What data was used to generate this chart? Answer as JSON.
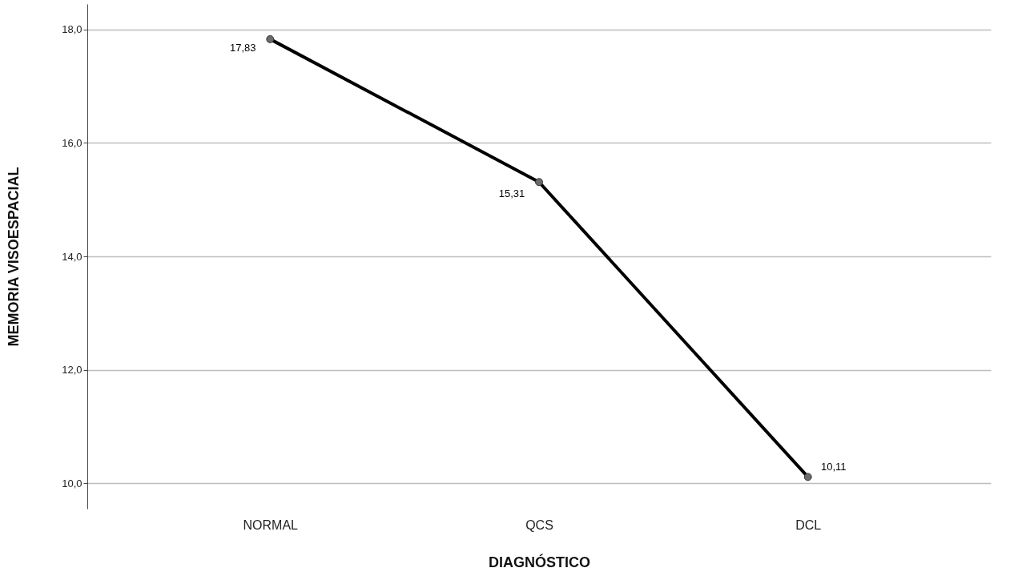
{
  "chart_data": {
    "type": "line",
    "xlabel": "DIAGNÓSTICO",
    "ylabel": "MEMORIA VISOESPACIAL",
    "categories": [
      "NORMAL",
      "QCS",
      "DCL"
    ],
    "series": [
      {
        "color": "#000000",
        "values": [
          17.83,
          15.31,
          10.11
        ],
        "value_labels": [
          "17,83",
          "15,31",
          "10,11"
        ]
      }
    ],
    "ylim": [
      9.55,
      18.45
    ],
    "yticks": [
      {
        "value": 10,
        "label": "10,0"
      },
      {
        "value": 12,
        "label": "12,0"
      },
      {
        "value": 14,
        "label": "14,0"
      },
      {
        "value": 16,
        "label": "16,0"
      },
      {
        "value": 18,
        "label": "18,0"
      }
    ],
    "grid": "y",
    "marker": "circle",
    "line_style": "solid"
  }
}
